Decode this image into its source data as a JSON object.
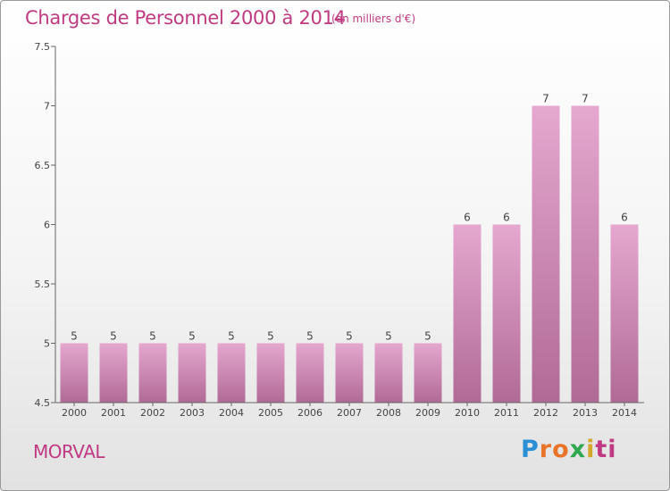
{
  "title": "Charges de Personnel 2000 à 2014",
  "subtitle": "(en milliers d'€)",
  "commune": "MORVAL",
  "logo": {
    "text": "Proxiti"
  },
  "colors": {
    "title": "#c03a82",
    "bar_top": "#e5a8cf",
    "bar_bottom": "#b06a96"
  },
  "chart_data": {
    "type": "bar",
    "categories": [
      "2000",
      "2001",
      "2002",
      "2003",
      "2004",
      "2005",
      "2006",
      "2007",
      "2008",
      "2009",
      "2010",
      "2011",
      "2012",
      "2013",
      "2014"
    ],
    "values": [
      5,
      5,
      5,
      5,
      5,
      5,
      5,
      5,
      5,
      5,
      6,
      6,
      7,
      7,
      6
    ],
    "data_labels": [
      "5",
      "5",
      "5",
      "5",
      "5",
      "5",
      "5",
      "5",
      "5",
      "5",
      "6",
      "6",
      "7",
      "7",
      "6"
    ],
    "ylim": [
      4.5,
      7.5
    ],
    "yticks": [
      4.5,
      5,
      5.5,
      6,
      6.5,
      7,
      7.5
    ],
    "ytick_labels": [
      "4.5",
      "5",
      "5.5",
      "6",
      "6.5",
      "7",
      "7.5"
    ],
    "grid": false,
    "title": "Charges de Personnel 2000 à 2014",
    "xlabel": "",
    "ylabel": ""
  }
}
